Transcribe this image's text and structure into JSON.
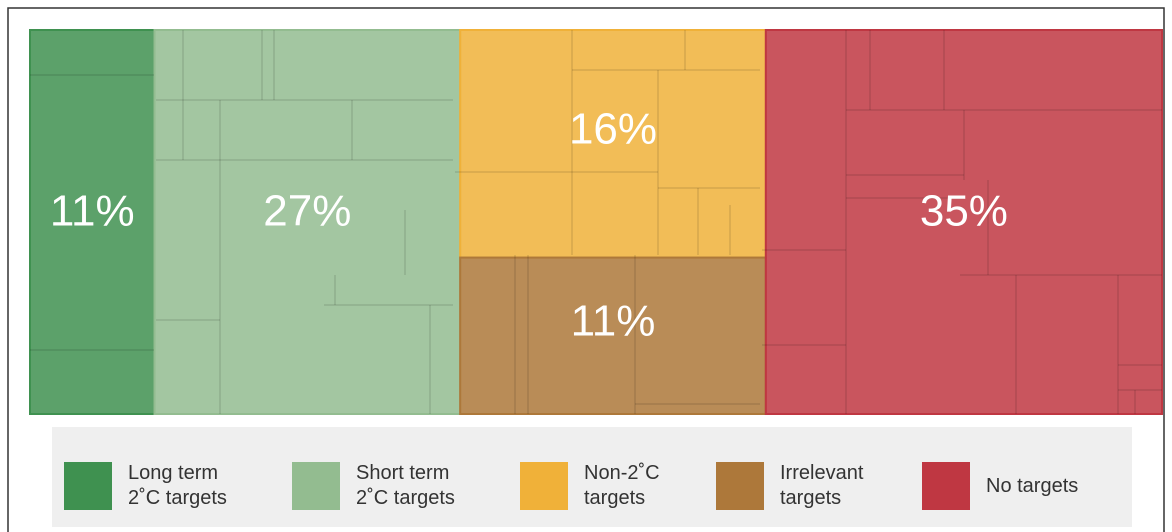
{
  "chart_data": {
    "type": "treemap",
    "categories": [
      "Long term 2˚C targets",
      "Short term 2˚C targets",
      "Non-2˚C targets",
      "Irrelevant targets",
      "No targets"
    ],
    "values": [
      11,
      27,
      16,
      11,
      35
    ],
    "value_labels": [
      "11%",
      "27%",
      "16%",
      "11%",
      "35%"
    ],
    "colors": [
      "#3f9150",
      "#93bc90",
      "#f0b139",
      "#ad783a",
      "#bf3742"
    ]
  }
}
